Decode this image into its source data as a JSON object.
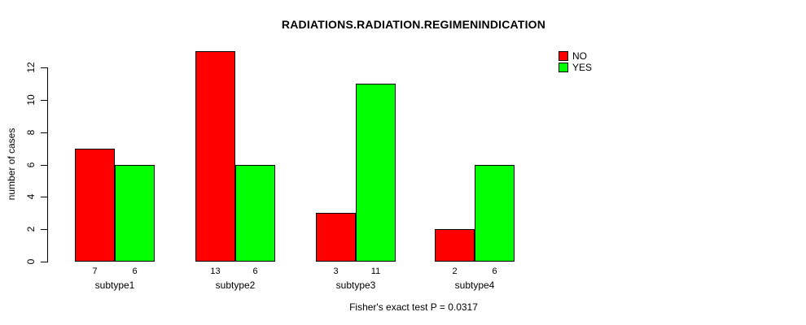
{
  "chart_data": {
    "type": "bar",
    "title": "RADIATIONS.RADIATION.REGIMENINDICATION",
    "ylabel": "number of cases",
    "xlabel": "",
    "categories": [
      "subtype1",
      "subtype2",
      "subtype3",
      "subtype4"
    ],
    "series": [
      {
        "name": "NO",
        "color": "#ff0000",
        "values": [
          7,
          13,
          3,
          2
        ]
      },
      {
        "name": "YES",
        "color": "#00ff00",
        "values": [
          6,
          6,
          11,
          6
        ]
      }
    ],
    "bar_value_labels": [
      [
        "7",
        "6"
      ],
      [
        "13",
        "6"
      ],
      [
        "3",
        "11"
      ],
      [
        "2",
        "6"
      ]
    ],
    "yticks": [
      0,
      2,
      4,
      6,
      8,
      10,
      12
    ],
    "ylim": [
      0,
      12
    ],
    "grid": false,
    "legend_position": "top-right",
    "annotation": "Fisher's exact test P = 0.0317"
  },
  "legend": {
    "items": [
      {
        "label": "NO",
        "color": "#ff0000"
      },
      {
        "label": "YES",
        "color": "#00ff00"
      }
    ]
  },
  "colors": {
    "no": "#ff0000",
    "yes": "#00ff00",
    "axis": "#000000",
    "background": "#ffffff"
  }
}
